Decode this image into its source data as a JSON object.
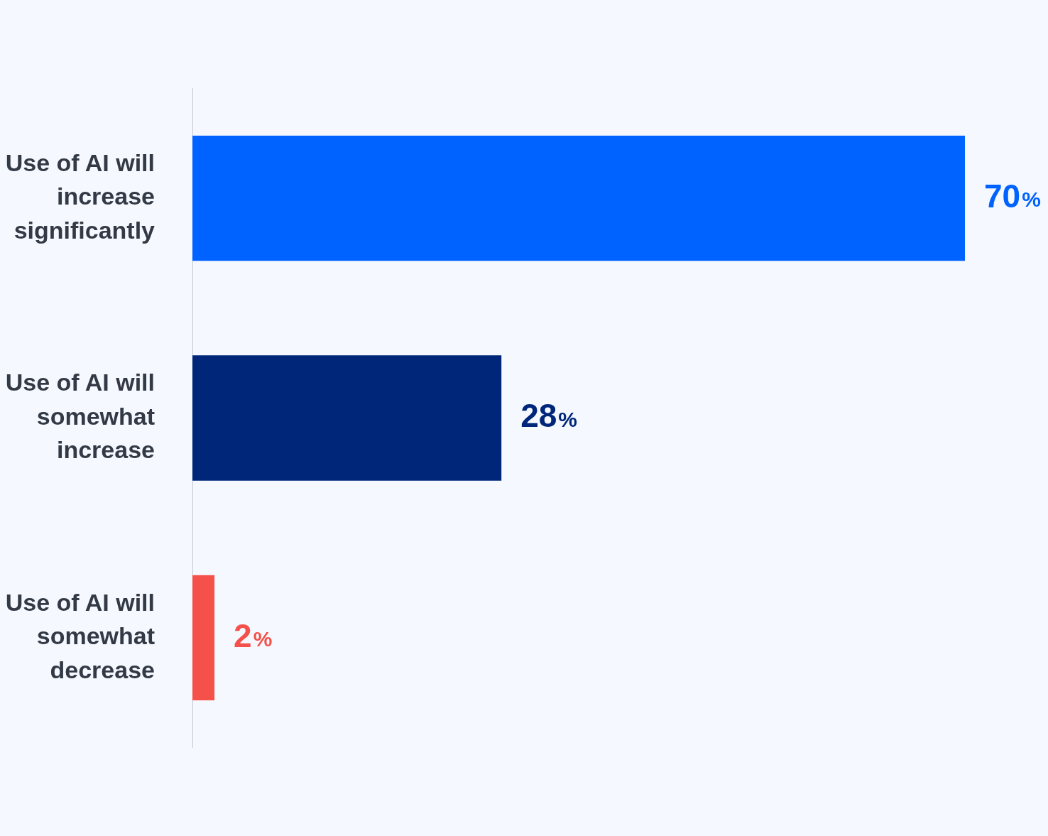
{
  "chart_data": {
    "type": "bar",
    "orientation": "horizontal",
    "categories": [
      "Use of AI will increase significantly",
      "Use of AI will somewhat increase",
      "Use of AI will somewhat decrease"
    ],
    "values": [
      70,
      28,
      2
    ],
    "colors": [
      "#0062ff",
      "#00267a",
      "#f5504a"
    ],
    "value_labels": [
      "70%",
      "28%",
      "2%"
    ],
    "grid": false,
    "legend": false
  }
}
